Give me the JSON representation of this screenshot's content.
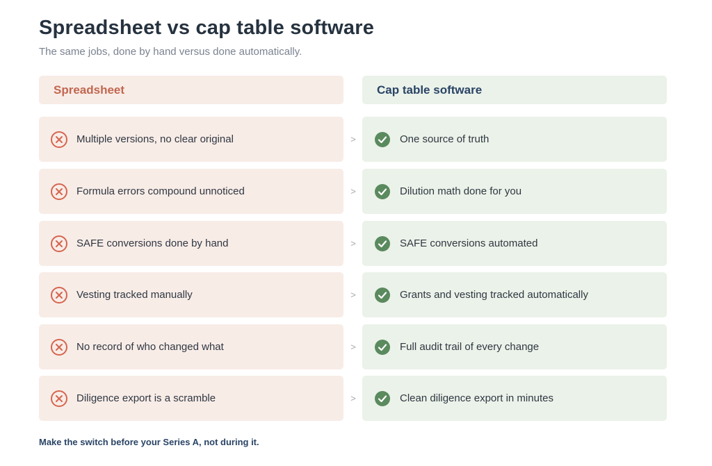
{
  "header": {
    "title": "Spreadsheet vs cap table software",
    "subtitle": "The same jobs, done by hand versus done automatically."
  },
  "columns": {
    "left": "Spreadsheet",
    "right": "Cap table software"
  },
  "rows": [
    {
      "problem": "Multiple versions, no clear original",
      "solution": "One source of truth"
    },
    {
      "problem": "Formula errors compound unnoticed",
      "solution": "Dilution math done for you"
    },
    {
      "problem": "SAFE conversions done by hand",
      "solution": "SAFE conversions automated"
    },
    {
      "problem": "Vesting tracked manually",
      "solution": "Grants and vesting tracked automatically"
    },
    {
      "problem": "No record of who changed what",
      "solution": "Full audit trail of every change"
    },
    {
      "problem": "Diligence export is a scramble",
      "solution": "Clean diligence export in minutes"
    }
  ],
  "arrow_glyph": ">",
  "footer": "Make the switch before your Series A, not during it.",
  "colors": {
    "problem_accent": "#d5654f",
    "solution_accent": "#5a8a5e",
    "problem_bg": "#f8ece7",
    "solution_bg": "#ebf2e9"
  },
  "icons": {
    "problem": "x-circle-icon",
    "solution": "check-circle-icon"
  }
}
